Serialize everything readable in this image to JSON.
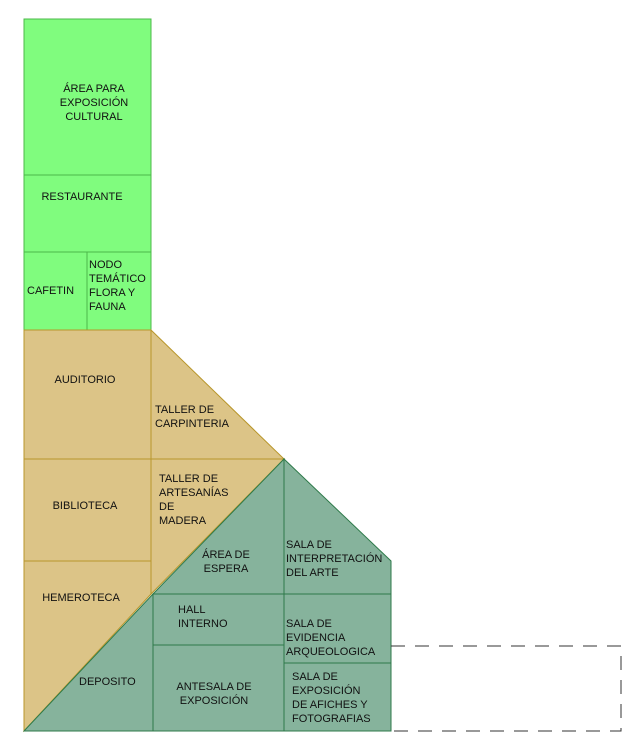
{
  "colors": {
    "green_fill": "#80fc7e",
    "green_line": "#4cb84a",
    "tan_fill": "#dcc487",
    "tan_line": "#b8962b",
    "teal_fill": "#86b39c",
    "teal_line": "#2e7a4a",
    "dashed_line": "#333333"
  },
  "rooms": {
    "area_exposicion_cultural": "ÁREA PARA\nEXPOSICIÓN\nCULTURAL",
    "restaurante": "RESTAURANTE",
    "cafetin": "CAFETIN",
    "nodo_tematico": "NODO\nTEMÁTICO\nFLORA Y\nFAUNA",
    "auditorio": "AUDITORIO",
    "taller_carpinteria": "TALLER DE\nCARPINTERIA",
    "biblioteca": "BIBLIOTECA",
    "taller_artesanias": "TALLER DE\nARTESANÍAS\nDE\nMADERA",
    "hemeroteca": "HEMEROTECA",
    "area_espera": "ÁREA DE\nESPERA",
    "sala_interpretacion": "SALA DE\nINTERPRETACIÓN\nDEL ARTE",
    "hall_interno": "HALL\nINTERNO",
    "sala_evidencia": "SALA DE\nEVIDENCIA\nARQUEOLOGICA",
    "deposito": "DEPOSITO",
    "antesala_exposicion": "ANTESALA DE\nEXPOSICIÓN",
    "sala_afiches": "SALA DE\nEXPOSICIÓN\nDE AFICHES Y\nFOTOGRAFIAS"
  }
}
